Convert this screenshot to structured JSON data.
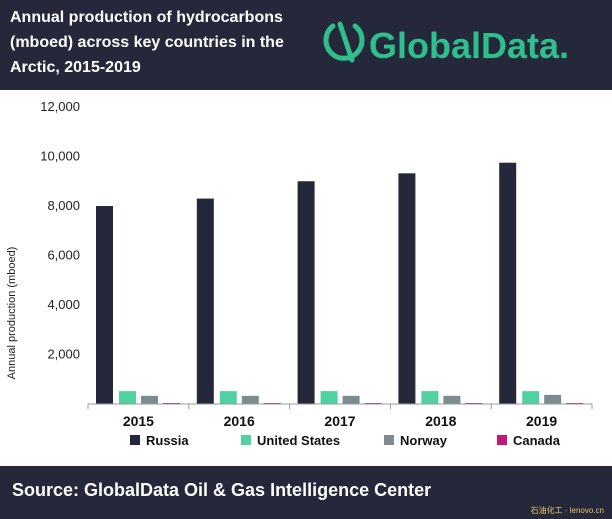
{
  "header": {
    "title_lines": [
      "Annual production of hydrocarbons",
      "(mboed) across key countries in the",
      "Arctic, 2015-2019"
    ],
    "brand": "GlobalData.",
    "colors": {
      "background": "#25283a",
      "brand_accent": "#2fbf8d"
    }
  },
  "chart_data": {
    "type": "bar",
    "categories": [
      "2015",
      "2016",
      "2017",
      "2018",
      "2019"
    ],
    "series": [
      {
        "name": "Russia",
        "color": "#25283a",
        "values": [
          8000,
          8300,
          9000,
          9320,
          9750
        ]
      },
      {
        "name": "United States",
        "color": "#4fd1a1",
        "values": [
          520,
          520,
          520,
          520,
          520
        ]
      },
      {
        "name": "Norway",
        "color": "#7c8b90",
        "values": [
          330,
          330,
          330,
          330,
          370
        ]
      },
      {
        "name": "Canada",
        "color": "#c2177a",
        "values": [
          40,
          40,
          40,
          40,
          40
        ]
      }
    ],
    "title": "",
    "xlabel": "",
    "ylabel": "Annual production (mboed)",
    "ylim": [
      0,
      12000
    ],
    "yticks": [
      0,
      2000,
      4000,
      6000,
      8000,
      10000,
      12000
    ],
    "ytick_labels": [
      "",
      "2,000",
      "4,000",
      "6,000",
      "8,000",
      "10,000",
      "12,000"
    ],
    "grid": false,
    "legend_position": "bottom"
  },
  "footer": {
    "source": "Source:  GlobalData Oil & Gas Intelligence Center",
    "stamp": "石油化工 · lenovo.cn"
  }
}
